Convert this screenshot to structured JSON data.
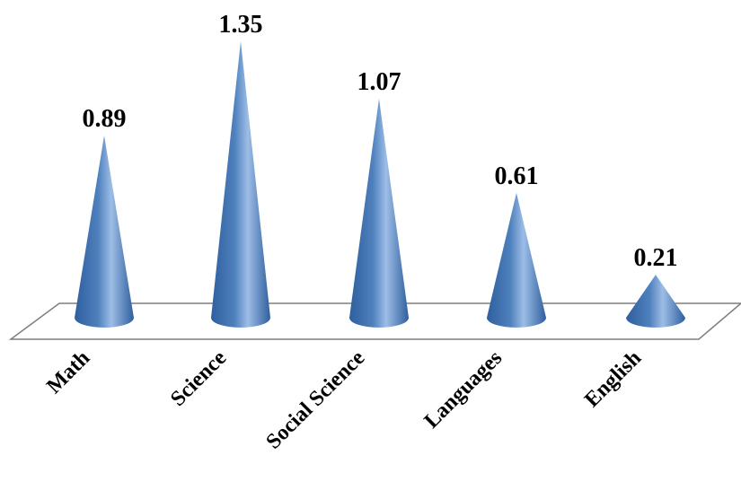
{
  "chart_data": {
    "type": "bar",
    "shape": "cone-3d",
    "categories": [
      "Math",
      "Science",
      "Social Science",
      "Languages",
      "English"
    ],
    "values": [
      0.89,
      1.35,
      1.07,
      0.61,
      0.21
    ],
    "data_labels": [
      "0.89",
      "1.35",
      "1.07",
      "0.61",
      "0.21"
    ],
    "ylim": [
      0,
      1.35
    ],
    "grid": false,
    "legend": "none",
    "colors": {
      "cone_dark": "#2f5f9e",
      "cone_mid": "#4f81bd",
      "cone_light": "#9dbde6",
      "floor_stroke": "#7f7f7f"
    }
  }
}
